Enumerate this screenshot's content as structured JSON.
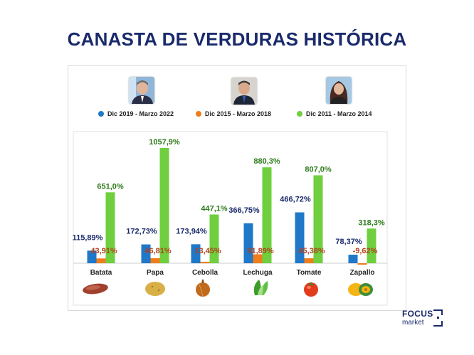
{
  "title": "CANASTA DE VERDURAS HISTÓRICA",
  "colors": {
    "title": "#1a2a6c",
    "s1": "#1f78c8",
    "s2": "#f07d1a",
    "s3": "#6fcf3f"
  },
  "legend": [
    {
      "label": "Dic 2019 - Marzo 2022",
      "color": "#1f78c8",
      "icon": "person-photo-icon"
    },
    {
      "label": "Dic 2015 - Marzo 2018",
      "color": "#f07d1a",
      "icon": "person-photo-icon"
    },
    {
      "label": "Dic 2011 - Marzo 2014",
      "color": "#6fcf3f",
      "icon": "person-photo-icon"
    }
  ],
  "chart_data": {
    "type": "bar",
    "title": "CANASTA DE VERDURAS HISTÓRICA",
    "categories": [
      "Batata",
      "Papa",
      "Cebolla",
      "Lechuga",
      "Tomate",
      "Zapallo"
    ],
    "category_icons": [
      "sweet-potato-icon",
      "potato-icon",
      "onion-icon",
      "lettuce-icon",
      "tomato-icon",
      "pumpkin-icon"
    ],
    "series": [
      {
        "name": "Dic 2019 - Marzo 2022",
        "color": "#1f78c8",
        "values": [
          115.89,
          172.73,
          173.94,
          366.75,
          466.72,
          78.37
        ],
        "labels": [
          "115,89%",
          "172,73%",
          "173,94%",
          "366,75%",
          "466,72%",
          "78,37%"
        ]
      },
      {
        "name": "Dic 2015 - Marzo 2018",
        "color": "#f07d1a",
        "values": [
          43.91,
          46.81,
          13.45,
          81.89,
          45.38,
          -9.62
        ],
        "labels": [
          "43,91%",
          "46,81%",
          "13,45%",
          "81,89%",
          "45,38%",
          "-9,62%"
        ]
      },
      {
        "name": "Dic 2011 - Marzo 2014",
        "color": "#6fcf3f",
        "values": [
          651.0,
          1057.9,
          447.1,
          880.3,
          807.0,
          318.3
        ],
        "labels": [
          "651,0%",
          "1057,9%",
          "447,1%",
          "880,3%",
          "807,0%",
          "318,3%"
        ]
      }
    ],
    "ylim": [
      0,
      1100
    ],
    "grid": false,
    "legend_position": "top"
  },
  "logo": {
    "line1": "FOCUS",
    "line2": "market"
  }
}
